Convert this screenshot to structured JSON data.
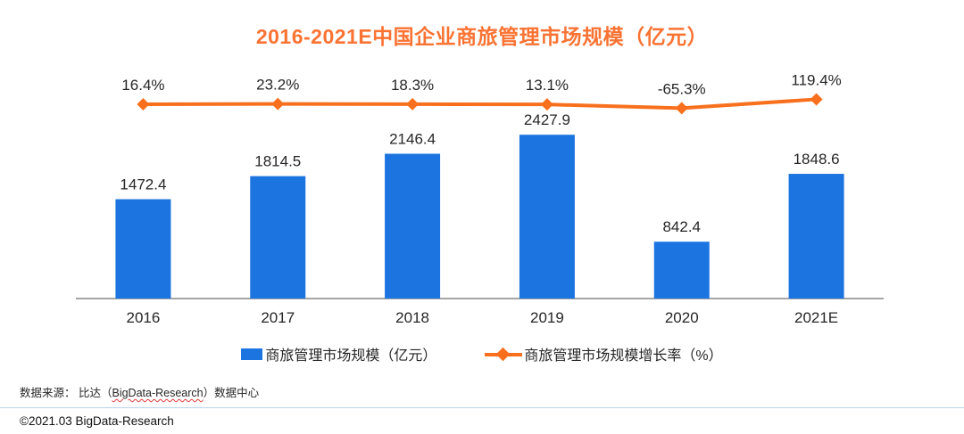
{
  "title": "2016-2021E中国企业商旅管理市场规模（亿元）",
  "chart_data": {
    "type": "bar",
    "combo": "bar+line",
    "title": "2016-2021E中国企业商旅管理市场规模（亿元）",
    "xlabel": "",
    "ylabel": "",
    "grid": false,
    "axes_visible": "x-axis-only",
    "legend_position": "bottom",
    "categories": [
      "2016",
      "2017",
      "2018",
      "2019",
      "2020",
      "2021E"
    ],
    "series": [
      {
        "name": "商旅管理市场规模（亿元）",
        "type": "bar",
        "color": "#1b74e0",
        "values": [
          1472.4,
          1814.5,
          2146.4,
          2427.9,
          842.4,
          1848.6
        ],
        "data_labels": [
          "1472.4",
          "1814.5",
          "2146.4",
          "2427.9",
          "842.4",
          "1848.6"
        ]
      },
      {
        "name": "商旅管理市场规模增长率（%）",
        "type": "line",
        "marker": "diamond",
        "color": "#f8701d",
        "values": [
          16.4,
          23.2,
          18.3,
          13.1,
          -65.3,
          119.4
        ],
        "data_labels": [
          "16.4%",
          "23.2%",
          "18.3%",
          "13.1%",
          "-65.3%",
          "119.4%"
        ]
      }
    ]
  },
  "legend": {
    "bar_label": "商旅管理市场规模（亿元）",
    "line_label": "商旅管理市场规模增长率（%）"
  },
  "footer": {
    "source_prefix": "数据来源： 比达（",
    "source_brand": "BigData-Research",
    "source_suffix": "）数据中心",
    "copyright": "©2021.03 BigData-Research"
  },
  "colors": {
    "bar": "#1b74e0",
    "line": "#f8701d",
    "title": "#fa7333",
    "axis": "#a6a6a6",
    "divider": "#bdd7ee",
    "label_text": "#262626"
  }
}
